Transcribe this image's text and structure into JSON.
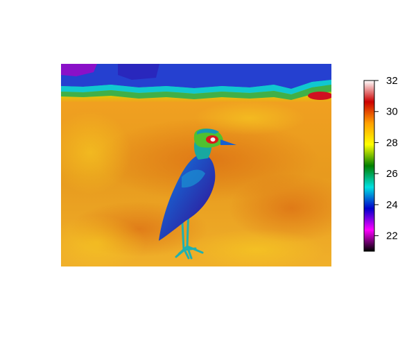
{
  "image": {
    "subject": "thermal image of a heron standing on ground"
  },
  "colorbar": {
    "palette": [
      "#000000",
      "#ff00ff",
      "#0000cc",
      "#00e0e0",
      "#008000",
      "#ffff00",
      "#ffa000",
      "#cc0000",
      "#ffffff"
    ],
    "min": 21,
    "max": 32,
    "ticks": [
      "22",
      "24",
      "26",
      "28",
      "30",
      "32"
    ]
  }
}
